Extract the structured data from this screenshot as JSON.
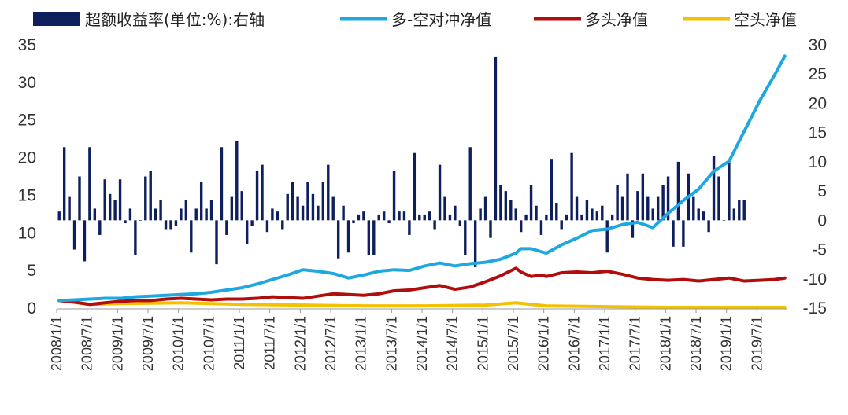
{
  "chart_data": {
    "type": "bar+line",
    "legend": [
      {
        "label": "超额收益率(单位:%):右轴",
        "color": "#0d1f5c",
        "kind": "bar"
      },
      {
        "label": "多-空对冲净值",
        "color": "#1fa8e0",
        "kind": "line"
      },
      {
        "label": "多头净值",
        "color": "#b10d0d",
        "kind": "line"
      },
      {
        "label": "空头净值",
        "color": "#f5c000",
        "kind": "line"
      }
    ],
    "left_axis": {
      "min": 0,
      "max": 35,
      "ticks": [
        0,
        5,
        10,
        15,
        20,
        25,
        30,
        35
      ],
      "tick_labels": [
        "0",
        "5",
        "10",
        "15",
        "20",
        "25",
        "30",
        "35"
      ]
    },
    "right_axis": {
      "min": -15,
      "max": 30,
      "ticks": [
        -15,
        -10,
        -5,
        0,
        5,
        10,
        15,
        20,
        25,
        30
      ],
      "tick_labels": [
        "-15",
        "-10",
        "-5",
        "0",
        "5",
        "10",
        "15",
        "20",
        "25",
        "30"
      ]
    },
    "x_axis": {
      "start": "2008-01",
      "end": "2019-12",
      "tick_labels": [
        "2008/1/1",
        "2008/7/1",
        "2009/1/1",
        "2009/7/1",
        "2010/1/1",
        "2010/7/1",
        "2011/1/1",
        "2011/7/1",
        "2012/1/1",
        "2012/7/1",
        "2013/1/1",
        "2013/7/1",
        "2014/1/1",
        "2014/7/1",
        "2015/1/1",
        "2015/7/1",
        "2016/1/1",
        "2016/7/1",
        "2017/1/1",
        "2017/7/1",
        "2018/1/1",
        "2018/7/1",
        "2019/1/1",
        "2019/7/1"
      ]
    },
    "bar_series": {
      "name": "超额收益率(单位:%):右轴",
      "axis": "right",
      "values": [
        1.5,
        12.5,
        4,
        -5,
        7.5,
        -7,
        12.5,
        2,
        -2.5,
        7,
        4.5,
        3.5,
        7,
        -0.5,
        2,
        -6,
        0,
        7.5,
        8.5,
        2,
        3.5,
        -1.5,
        -1.5,
        -1,
        2,
        3.5,
        -5.5,
        2,
        6.5,
        2,
        3.5,
        -7.5,
        12.5,
        -2.5,
        4,
        13.5,
        5,
        -4,
        -1,
        8.5,
        9.5,
        -2,
        2,
        1.5,
        -1.5,
        4.5,
        6.5,
        4,
        2.5,
        6.5,
        4.5,
        2.5,
        6.5,
        9.5,
        4,
        -6.5,
        2.5,
        -5.5,
        -0.5,
        1,
        1.5,
        -6,
        -6,
        1,
        1.5,
        -0.5,
        8.5,
        1.5,
        1.5,
        -2.5,
        11.5,
        1,
        1,
        1.5,
        -1.5,
        9.5,
        4,
        1,
        2.5,
        -1,
        -6,
        12.5,
        -8,
        2,
        4,
        -3,
        28,
        6,
        5,
        3.5,
        2,
        -2,
        1,
        6,
        2.5,
        -2.5,
        1,
        10.5,
        3,
        -1.5,
        1,
        11.5,
        4,
        1,
        3.5,
        2,
        1.5,
        2.5,
        -5.5,
        1,
        6,
        4,
        8,
        -3,
        5,
        8,
        4,
        2,
        4,
        6,
        7.5,
        -4.5,
        10,
        -4.5,
        8,
        4,
        2,
        1.5,
        -2,
        11,
        7.5,
        0,
        10,
        2,
        3.5,
        3.5
      ]
    },
    "line_series": [
      {
        "name": "多-空对冲净值",
        "axis": "left",
        "x": [
          0,
          3,
          6,
          9,
          12,
          15,
          18,
          21,
          24,
          27,
          30,
          33,
          36,
          39,
          42,
          45,
          48,
          51,
          54,
          57,
          60,
          63,
          66,
          69,
          72,
          75,
          78,
          81,
          84,
          87,
          90,
          91,
          93,
          96,
          99,
          102,
          105,
          108,
          111,
          114,
          117,
          120,
          123,
          126,
          129,
          132,
          135,
          138,
          141,
          143
        ],
        "values": [
          1.0,
          1.1,
          1.2,
          1.3,
          1.3,
          1.5,
          1.6,
          1.7,
          1.8,
          1.9,
          2.1,
          2.4,
          2.7,
          3.2,
          3.8,
          4.4,
          5.1,
          4.9,
          4.6,
          4.0,
          4.4,
          4.9,
          5.1,
          5.0,
          5.6,
          6.0,
          5.6,
          5.9,
          6.1,
          6.5,
          7.3,
          7.9,
          7.9,
          7.3,
          8.4,
          9.3,
          10.3,
          10.5,
          11.1,
          11.4,
          10.7,
          12.6,
          14.3,
          15.8,
          18.2,
          19.5,
          23.5,
          27.5,
          31.0,
          33.5
        ]
      },
      {
        "name": "多头净值",
        "axis": "left",
        "x": [
          0,
          3,
          6,
          9,
          12,
          15,
          18,
          21,
          24,
          27,
          30,
          33,
          36,
          39,
          42,
          45,
          48,
          51,
          54,
          57,
          60,
          63,
          66,
          69,
          72,
          75,
          78,
          81,
          84,
          87,
          90,
          91,
          93,
          95,
          96,
          99,
          102,
          105,
          108,
          111,
          114,
          117,
          120,
          123,
          126,
          129,
          132,
          135,
          138,
          141,
          143
        ],
        "values": [
          1.0,
          0.8,
          0.5,
          0.7,
          0.9,
          1.0,
          1.0,
          1.2,
          1.3,
          1.2,
          1.1,
          1.2,
          1.2,
          1.3,
          1.5,
          1.4,
          1.3,
          1.6,
          1.9,
          1.8,
          1.7,
          1.9,
          2.3,
          2.4,
          2.7,
          3.0,
          2.5,
          2.8,
          3.5,
          4.3,
          5.3,
          4.8,
          4.2,
          4.4,
          4.2,
          4.7,
          4.8,
          4.7,
          4.9,
          4.5,
          4.0,
          3.8,
          3.7,
          3.8,
          3.6,
          3.8,
          4.0,
          3.6,
          3.7,
          3.8,
          4.0
        ]
      },
      {
        "name": "空头净值",
        "axis": "left",
        "x": [
          0,
          6,
          12,
          24,
          36,
          48,
          60,
          72,
          84,
          90,
          96,
          108,
          120,
          132,
          143
        ],
        "values": [
          1.0,
          0.5,
          0.6,
          0.7,
          0.5,
          0.4,
          0.3,
          0.3,
          0.4,
          0.7,
          0.3,
          0.2,
          0.1,
          0.1,
          0.1
        ]
      }
    ]
  }
}
